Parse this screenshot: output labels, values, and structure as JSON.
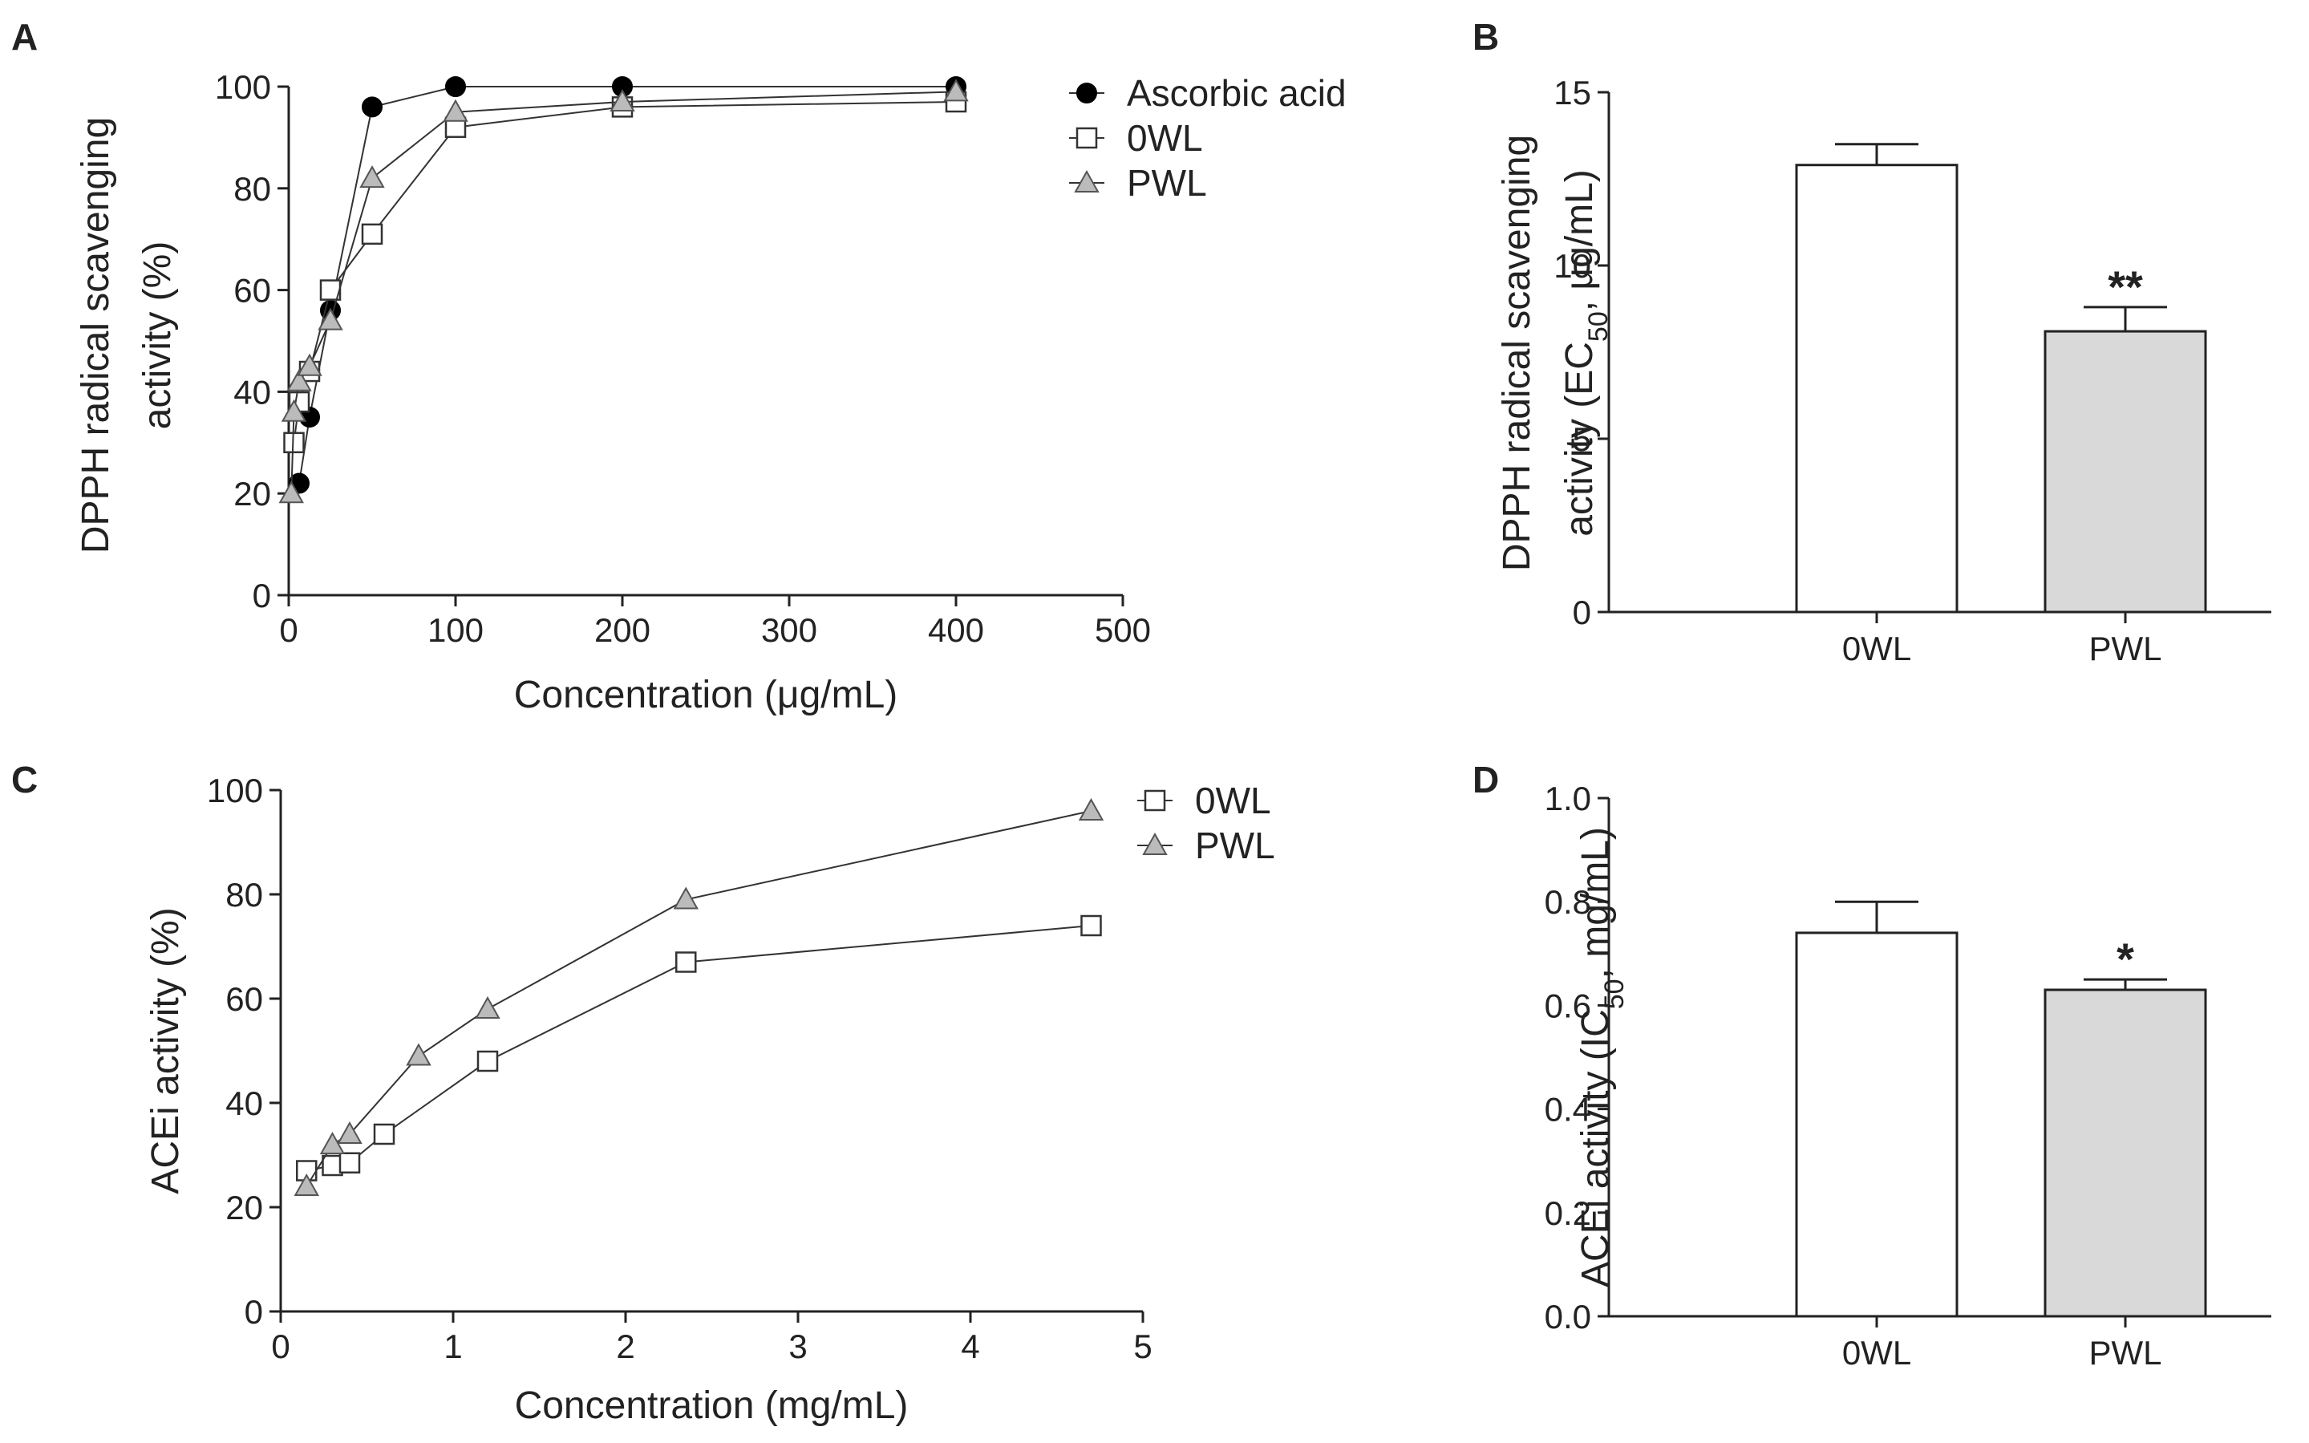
{
  "chart_data": [
    {
      "panel": "A",
      "type": "line",
      "xlabel": "Concentration (μg/mL)",
      "ylabel": [
        "DPPH radical scavenging",
        "activity  (%)"
      ],
      "xlim": [
        0,
        500
      ],
      "ylim": [
        0,
        100
      ],
      "xticks": [
        0,
        100,
        200,
        300,
        400,
        500
      ],
      "yticks": [
        0,
        20,
        40,
        60,
        80,
        100
      ],
      "legend_position": "top-right",
      "series": [
        {
          "name": "Ascorbic acid",
          "marker": "circle",
          "fill": "#000000",
          "x": [
            6.25,
            12.5,
            25,
            50,
            100,
            200,
            400
          ],
          "values": [
            22,
            35,
            56,
            96,
            100,
            100,
            100
          ]
        },
        {
          "name": "0WL",
          "marker": "square",
          "fill": "#ffffff",
          "x": [
            3.125,
            6.25,
            12.5,
            25,
            50,
            100,
            200,
            400
          ],
          "values": [
            30,
            38,
            44,
            60,
            71,
            92,
            96,
            97
          ]
        },
        {
          "name": "PWL",
          "marker": "triangle",
          "fill": "#bbbbbb",
          "x": [
            1.56,
            3.125,
            6.25,
            12.5,
            25,
            50,
            100,
            200,
            400
          ],
          "values": [
            20,
            36,
            42,
            45,
            54,
            82,
            95,
            97,
            99
          ]
        }
      ]
    },
    {
      "panel": "B",
      "type": "bar",
      "ylabel": [
        "DPPH radical scavenging",
        "activity (EC",
        "50",
        ", μg/mL)"
      ],
      "ylim": [
        0,
        15
      ],
      "yticks": [
        0,
        5,
        10,
        15
      ],
      "categories": [
        "0WL",
        "PWL"
      ],
      "values": [
        12.9,
        8.1
      ],
      "errors": [
        0.6,
        0.7
      ],
      "colors": [
        "#ffffff",
        "#d9d9d9"
      ],
      "significance": [
        "",
        "**"
      ]
    },
    {
      "panel": "C",
      "type": "line",
      "xlabel": "Concentration (mg/mL)",
      "ylabel": [
        "ACEi activity (%)"
      ],
      "xlim": [
        0,
        5
      ],
      "ylim": [
        0,
        100
      ],
      "xticks": [
        0,
        1,
        2,
        3,
        4,
        5
      ],
      "yticks": [
        0,
        20,
        40,
        60,
        80,
        100
      ],
      "legend_position": "top-right",
      "series": [
        {
          "name": "0WL",
          "marker": "square",
          "fill": "#ffffff",
          "x": [
            0.15,
            0.3,
            0.4,
            0.6,
            1.2,
            2.35,
            4.7
          ],
          "values": [
            27,
            28,
            28.5,
            34,
            48,
            67,
            74
          ]
        },
        {
          "name": "PWL",
          "marker": "triangle",
          "fill": "#bbbbbb",
          "x": [
            0.15,
            0.3,
            0.4,
            0.8,
            1.2,
            2.35,
            4.7
          ],
          "values": [
            24,
            32,
            34,
            49,
            58,
            79,
            96
          ]
        }
      ]
    },
    {
      "panel": "D",
      "type": "bar",
      "ylabel": [
        "ACEi activity (IC",
        "50",
        ",  mg/mL)"
      ],
      "ylim": [
        0,
        1.0
      ],
      "yticks": [
        "0.0",
        "0.2",
        "0.4",
        "0.6",
        "0.8",
        "1.0"
      ],
      "categories": [
        "0WL",
        "PWL"
      ],
      "values": [
        0.74,
        0.63
      ],
      "errors": [
        0.06,
        0.02
      ],
      "colors": [
        "#ffffff",
        "#d9d9d9"
      ],
      "significance": [
        "",
        "*"
      ]
    }
  ]
}
